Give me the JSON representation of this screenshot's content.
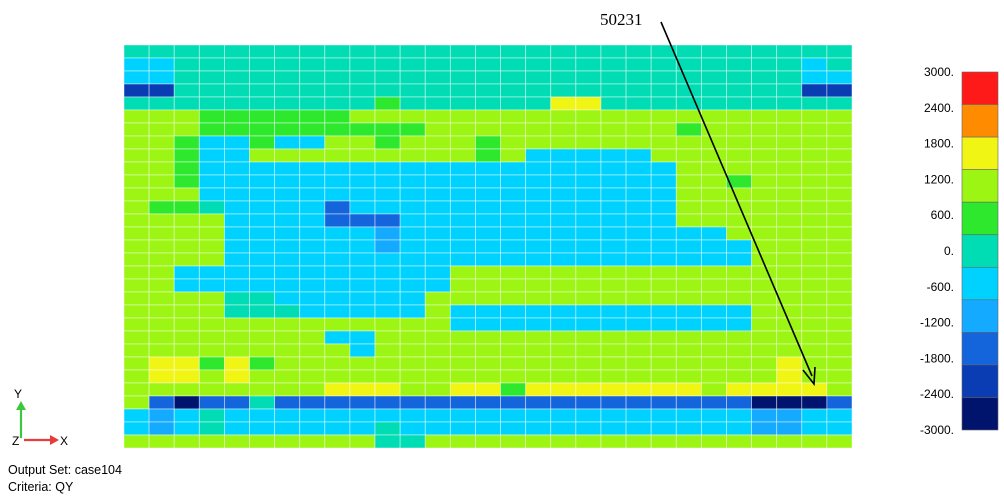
{
  "plot": {
    "output_set_label": "Output Set: case104",
    "criteria_label": "Criteria: QY"
  },
  "callout": {
    "label": "50231"
  },
  "triad": {
    "y_label": "Y",
    "z_label": "Z",
    "x_label": "X"
  },
  "legend": {
    "labels": [
      "3000.",
      "2400.",
      "1800.",
      "1200.",
      "600.",
      "0.",
      "-600.",
      "-1200.",
      "-1800.",
      "-2400.",
      "-3000."
    ],
    "colors": [
      "#ff1a1a",
      "#ff8c00",
      "#f0f514",
      "#9cf512",
      "#2ee82e",
      "#00dcb4",
      "#00d2ff",
      "#14aaff",
      "#1464dc",
      "#0a3cb4",
      "#00146e"
    ]
  },
  "chart_data": {
    "type": "heatmap",
    "title": "",
    "xlabel": "",
    "ylabel": "",
    "value_range": [
      -3000,
      3000
    ],
    "palette_keys": {
      "C": "#00dcb4",
      "L": "#00d2ff",
      "M": "#14aaff",
      "B": "#1464dc",
      "D": "#0a3cb4",
      "N": "#00146e",
      "G": "#2ee82e",
      "Y": "#9cf512",
      "E": "#f0f514",
      "O": "#ff8c00",
      "R": "#ff1a1a"
    },
    "rows": [
      "CCCCCCCCCCCCCCCCCCCCCCCCCCCCC",
      "LLCCCCCCCCCCCCCCCCCCCCCCCCCLC",
      "LLCCCCCCCCCCCCCCCCCCCCCCCCCLL",
      "DDCCCCCCCCCCCCCCCCCCCCCCCCCDD",
      "CCCCCCCCCCGCCCCCCEECCCCCCCCCC",
      "YYYGGGGGGYYYYYYYYYYYYYYYYYYYY",
      "YYYGGGGGGGGGYYYYYYYYYYGYYYYYY",
      "YYGLLGLLYYGYYYGYYYYYYYYYYYYYY",
      "YYGLLYYYYYYYYYGYLLLLLYYYYYYYY",
      "YYGLLLLLLLLLLLLLLLLLLLYYYYYYY",
      "YYGLLLLLLLLLLLLLLLLLLLYYGYYYY",
      "YYYLLLLLLLLLLLLLLLLLLLYYYYYYY",
      "YGGCLLLLBLLLLLLLLLLLLLYYYYYYY",
      "YYYYLLLLBBBLLLLLLLLLLLYYYYYYY",
      "YYYYLLLLLLMLLLLLLLLLLLLLYYYYY",
      "YYYYLLLLLLMLLLLLLLLLLLLLLYYYY",
      "YYYYLLLLLLLLLLLLLLLLLLLLLYYYY",
      "YYLLLLLLLLLLLYYYYYYYYYYYYYYYY",
      "YYLLLLLLLLLLLYYYYYYYYYYYYYYYY",
      "YYYYCCLLLLLLYYYYYYYYYYYYYYYYY",
      "YYYYCCCLLLLLYLLLLLLLLLLLLYYYY",
      "YYYYYYYYYYYYYLLLLLLLLLLLLYYYY",
      "YYYYYYYYLLYYYYYYYYYYYYYYYYYYY",
      "YYYYYYYYYLYYYYYYYYYYYYYYYYYYY",
      "YEEGEGYYYYYYYYYYYYYYYYYYYYEYY",
      "YEEYEYYYYYYYYYYYYYYYYYYYYYEYY",
      "YYYYYYYYEEEYYEEGEEEEEEEYEEEEY",
      "YBNBBCBBBBBBBBBBBBBBBBBBBNNNB",
      "LMLCLLLLLLLLLLLLLLLLLLLLLMMLL",
      "LMLCLLLLLLCLLLLLLLLLLLLLLMMLL",
      "YYYYYYYYYYCCYYYYYYYYYYYYYYYYY"
    ]
  }
}
